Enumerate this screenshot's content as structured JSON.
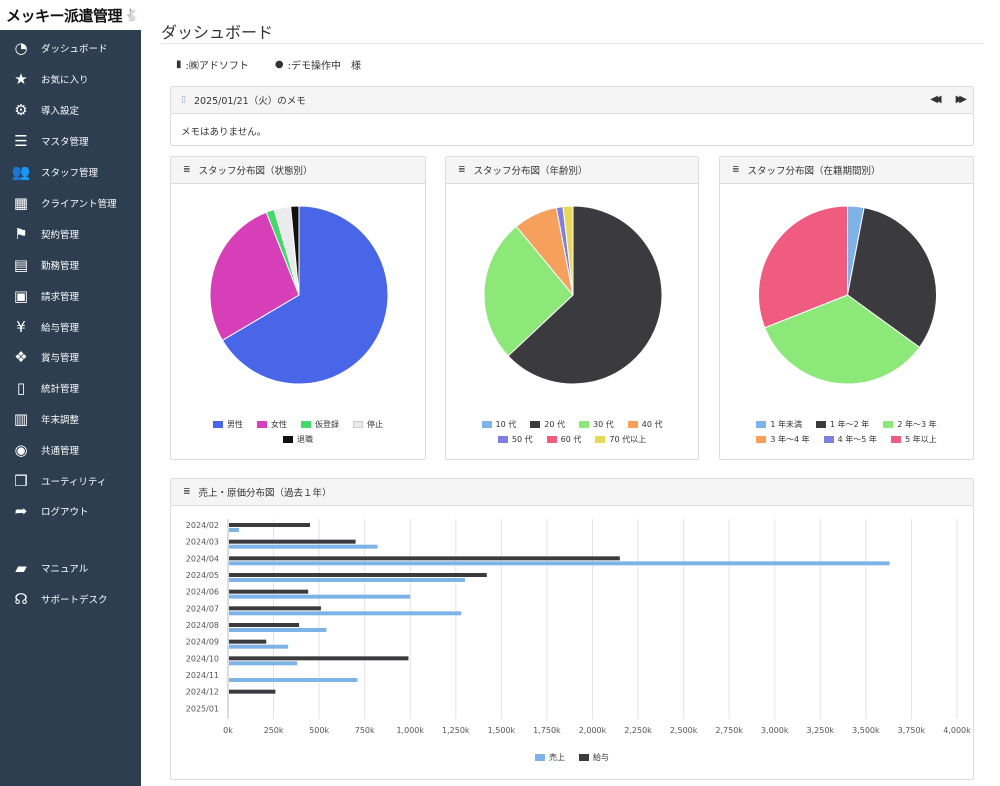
{
  "app": {
    "logo": "メッキー派遣管理",
    "logo_icon": "rabbit-icon"
  },
  "sidebar": {
    "items": [
      {
        "label": "ダッシュボード",
        "icon": "dashboard-icon",
        "glyph": "◔"
      },
      {
        "label": "お気に入り",
        "icon": "star-icon",
        "glyph": "★"
      },
      {
        "label": "導入設定",
        "icon": "cogs-icon",
        "glyph": "⚙"
      },
      {
        "label": "マスタ管理",
        "icon": "list-icon",
        "glyph": "☰"
      },
      {
        "label": "スタッフ管理",
        "icon": "users-icon",
        "glyph": "👥"
      },
      {
        "label": "クライアント管理",
        "icon": "building-icon",
        "glyph": "▦"
      },
      {
        "label": "契約管理",
        "icon": "flag-icon",
        "glyph": "⚑"
      },
      {
        "label": "勤務管理",
        "icon": "calendar-icon",
        "glyph": "▤"
      },
      {
        "label": "請求管理",
        "icon": "money-icon",
        "glyph": "▣"
      },
      {
        "label": "給与管理",
        "icon": "yen-icon",
        "glyph": "¥"
      },
      {
        "label": "賞与管理",
        "icon": "dropbox-icon",
        "glyph": "❖"
      },
      {
        "label": "統計管理",
        "icon": "file-icon",
        "glyph": "▯"
      },
      {
        "label": "年末調整",
        "icon": "book-icon",
        "glyph": "▥"
      },
      {
        "label": "共通管理",
        "icon": "eye-slash-icon",
        "glyph": "◉"
      },
      {
        "label": "ユーティリティ",
        "icon": "cubes-icon",
        "glyph": "❒"
      },
      {
        "label": "ログアウト",
        "icon": "share-icon",
        "glyph": "➦"
      },
      {
        "label": "マニュアル",
        "icon": "book-open-icon",
        "glyph": "▰"
      },
      {
        "label": "サポートデスク",
        "icon": "headphones-icon",
        "glyph": "☊"
      }
    ]
  },
  "page": {
    "title": "ダッシュボード",
    "company": ":㈱アドソフト",
    "user": ":デモ操作中　様"
  },
  "memo": {
    "title": "2025/01/21（火）のメモ",
    "body": "メモはありません。",
    "prev_glyph": "◀◀",
    "next_glyph": "▶▶"
  },
  "pies": [
    {
      "title": "スタッフ分布図（状態別）",
      "slices": [
        {
          "label": "男性",
          "value": 66.5,
          "color": "#4a66e8"
        },
        {
          "label": "女性",
          "value": 27.5,
          "color": "#d63fb8"
        },
        {
          "label": "仮登録",
          "value": 1.5,
          "color": "#45d86a"
        },
        {
          "label": "停止",
          "value": 3.0,
          "color": "#e9ecea"
        },
        {
          "label": "退職",
          "value": 1.5,
          "color": "#111111"
        }
      ]
    },
    {
      "title": "スタッフ分布図（年齢別）",
      "slices": [
        {
          "label": "10 代",
          "value": 0.0,
          "color": "#7eb3e8"
        },
        {
          "label": "20 代",
          "value": 63.0,
          "color": "#3b3b3f"
        },
        {
          "label": "30 代",
          "value": 26.0,
          "color": "#8ce879"
        },
        {
          "label": "40 代",
          "value": 8.0,
          "color": "#f5a15d"
        },
        {
          "label": "50 代",
          "value": 1.2,
          "color": "#7f7fe0"
        },
        {
          "label": "60 代",
          "value": 0.0,
          "color": "#f05c80"
        },
        {
          "label": "70 代以上",
          "value": 1.8,
          "color": "#e7d85a"
        }
      ]
    },
    {
      "title": "スタッフ分布図（在籍期間別）",
      "slices": [
        {
          "label": "1 年未満",
          "value": 3.0,
          "color": "#7eb3e8"
        },
        {
          "label": "1 年～2 年",
          "value": 32.0,
          "color": "#3b3b3f"
        },
        {
          "label": "2 年～3 年",
          "value": 34.0,
          "color": "#8ce879"
        },
        {
          "label": "3 年～4 年",
          "value": 0.0,
          "color": "#f5a15d"
        },
        {
          "label": "4 年～5 年",
          "value": 0.0,
          "color": "#7f7fe0"
        },
        {
          "label": "5 年以上",
          "value": 31.0,
          "color": "#f05c80"
        }
      ]
    }
  ],
  "chart_data": {
    "type": "bar",
    "orientation": "horizontal",
    "title": "売上・原価分布図（過去１年）",
    "categories": [
      "2024/02",
      "2024/03",
      "2024/04",
      "2024/05",
      "2024/06",
      "2024/07",
      "2024/08",
      "2024/09",
      "2024/10",
      "2024/11",
      "2024/12",
      "2025/01"
    ],
    "series": [
      {
        "name": "売上",
        "color": "#7eb3e8",
        "values": [
          60000,
          820000,
          3630000,
          1300000,
          1000000,
          1280000,
          540000,
          330000,
          380000,
          710000,
          0,
          0
        ]
      },
      {
        "name": "給与",
        "color": "#3b3b3f",
        "values": [
          450000,
          700000,
          2150000,
          1420000,
          440000,
          510000,
          390000,
          210000,
          990000,
          0,
          260000,
          0
        ]
      }
    ],
    "xlim": [
      0,
      4000000
    ],
    "xticks": [
      "0k",
      "250k",
      "500k",
      "750k",
      "1,000k",
      "1,250k",
      "1,500k",
      "1,750k",
      "2,000k",
      "2,250k",
      "2,500k",
      "2,750k",
      "3,000k",
      "3,250k",
      "3,500k",
      "3,750k",
      "4,000k"
    ],
    "grid": true,
    "legend": "bottom"
  }
}
